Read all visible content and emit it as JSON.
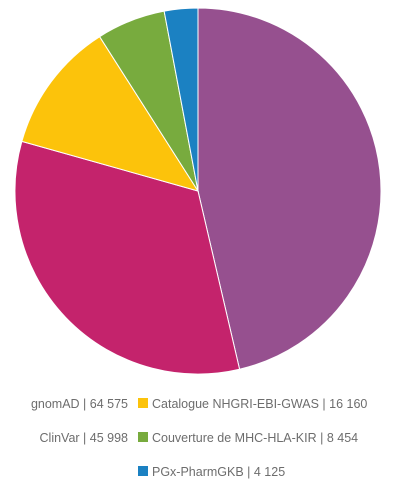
{
  "chart_data": {
    "type": "pie",
    "title": "",
    "start_angle_deg": 0,
    "direction": "clockwise",
    "legend_placement": "bottom",
    "series": [
      {
        "name": "",
        "slices": [
          {
            "label": "gnomAD",
            "value": 64575,
            "value_text": "64 575",
            "color": "#96508f"
          },
          {
            "label": "ClinVar",
            "value": 45998,
            "value_text": "45 998",
            "color": "#c4236c"
          },
          {
            "label": "Catalogue NHGRI-EBI-GWAS",
            "value": 16160,
            "value_text": "16 160",
            "color": "#fcc30b"
          },
          {
            "label": "Couverture de MHC-HLA-KIR",
            "value": 8454,
            "value_text": "8 454",
            "color": "#78ab3e"
          },
          {
            "label": "PGx-PharmGKB",
            "value": 4125,
            "value_text": "4 125",
            "color": "#1b81c2"
          }
        ]
      }
    ]
  }
}
